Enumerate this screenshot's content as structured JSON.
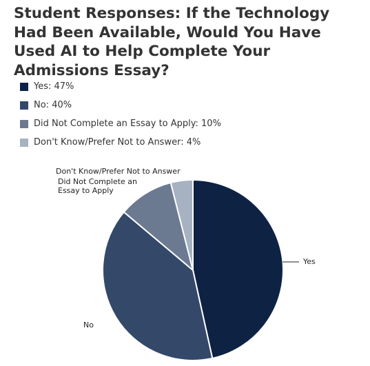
{
  "title": "Student Responses: If the Technology Had Been Available, Would You Have Used AI to Help Complete Your Admissions Essay?",
  "legend": [
    {
      "text": "Yes: 47%",
      "color": "#0e2244"
    },
    {
      "text": "No: 40%",
      "color": "#34486a"
    },
    {
      "text": "Did Not Complete an Essay to Apply: 10%",
      "color": "#6b7a90"
    },
    {
      "text": "Don't Know/Prefer Not to Answer: 4%",
      "color": "#a6b1c1"
    }
  ],
  "chart_data": {
    "type": "pie",
    "title": "Student Responses: If the Technology Had Been Available, Would You Have Used AI to Help Complete Your Admissions Essay?",
    "unit": "%",
    "legend_position": "top-left",
    "slices": [
      {
        "label": "Yes",
        "value": 47,
        "color": "#0e2244",
        "label_lines": [
          "Yes"
        ]
      },
      {
        "label": "No",
        "value": 40,
        "color": "#34486a",
        "label_lines": [
          "No"
        ]
      },
      {
        "label": "Did Not Complete an Essay to Apply",
        "value": 10,
        "color": "#6b7a90",
        "label_lines": [
          "Did Not Complete an",
          "Essay to Apply"
        ]
      },
      {
        "label": "Don't Know/Prefer Not to Answer",
        "value": 4,
        "color": "#a6b1c1",
        "label_lines": [
          "Don't Know/Prefer Not to Answer"
        ]
      }
    ]
  }
}
